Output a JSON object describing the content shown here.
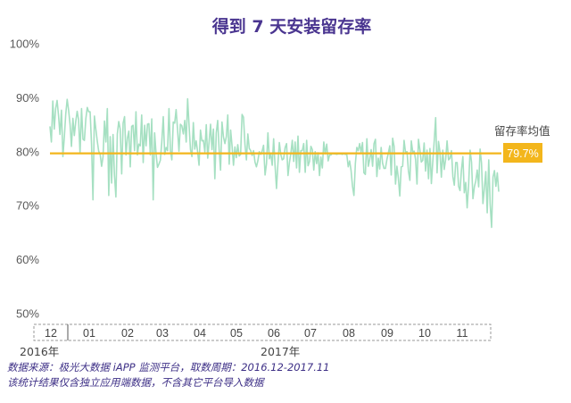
{
  "chart_data": {
    "type": "line",
    "title": "得到 7 天安装留存率",
    "y_unit": "%",
    "ylim": [
      50,
      100
    ],
    "yticks": [
      "100%",
      "90%",
      "80%",
      "70%",
      "60%",
      "50%"
    ],
    "months": [
      "12",
      "01",
      "02",
      "03",
      "04",
      "05",
      "06",
      "07",
      "08",
      "09",
      "10",
      "11"
    ],
    "year_labels": [
      "2016年",
      "2017年"
    ],
    "x_range": [
      "2016-12-01",
      "2017-11-30"
    ],
    "average": {
      "label": "留存率均值",
      "value": 79.7,
      "value_label": "79.7%"
    },
    "colors": {
      "series": "#a6e0c2",
      "average": "#f3b61c",
      "title": "#4a3590",
      "badge": "#f3b61c"
    },
    "grid": false,
    "series": [
      {
        "values": [
          84.7,
          81.8,
          89.4,
          84.2,
          88.0,
          89.5,
          86.7,
          83.2,
          87.7,
          79.1,
          82.7,
          87.0,
          89.7,
          87.7,
          85.1,
          81.0,
          86.2,
          83.0,
          85.6,
          87.5,
          85.9,
          79.7,
          88.0,
          82.3,
          82.1,
          86.1,
          88.2,
          87.4,
          87.4,
          81.4,
          71.1,
          86.6,
          84.2,
          82.0,
          80.1,
          79.6,
          77.3,
          79.1,
          85.7,
          81.8,
          88.0,
          71.9,
          82.8,
          74.2,
          83.2,
          75.6,
          71.6,
          83.3,
          85.6,
          84.2,
          75.9,
          85.3,
          86.5,
          79.4,
          82.5,
          83.8,
          77.2,
          84.7,
          84.9,
          80.2,
          87.4,
          79.4,
          81.4,
          81.1,
          86.8,
          78.0,
          84.9,
          81.1,
          85.1,
          85.2,
          79.4,
          86.1,
          71.1,
          83.5,
          79.7,
          77.1,
          77.7,
          78.4,
          81.7,
          86.5,
          79.5,
          80.8,
          80.2,
          88.0,
          80.3,
          78.5,
          85.5,
          85.3,
          87.8,
          84.1,
          80.1,
          85.1,
          84.8,
          83.3,
          85.8,
          81.8,
          89.8,
          84.9,
          80.4,
          79.1,
          85.4,
          80.5,
          82.0,
          80.0,
          77.5,
          84.0,
          82.0,
          82.1,
          80.0,
          85.0,
          78.8,
          81.9,
          85.1,
          80.4,
          84.2,
          75.0,
          83.5,
          85.8,
          80.5,
          76.6,
          85.5,
          82.7,
          81.5,
          82.8,
          86.8,
          77.7,
          84.0,
          81.1,
          77.5,
          80.9,
          78.9,
          81.3,
          79.2,
          79.5,
          86.9,
          86.4,
          81.3,
          78.5,
          83.3,
          80.6,
          80.2,
          79.3,
          80.2,
          78.1,
          77.2,
          78.3,
          80.0,
          79.5,
          80.1,
          81.2,
          75.7,
          77.8,
          83.5,
          78.7,
          79.6,
          77.5,
          82.4,
          77.4,
          73.2,
          77.8,
          81.7,
          79.5,
          78.5,
          78.7,
          80.8,
          81.5,
          75.6,
          78.0,
          79.7,
          82.1,
          78.2,
          81.8,
          77.0,
          82.9,
          76.2,
          80.2,
          80.2,
          81.5,
          76.2,
          82.1,
          77.4,
          78.2,
          81.0,
          80.4,
          76.6,
          80.0,
          77.8,
          79.8,
          75.6,
          79.0,
          77.0,
          81.8,
          79.6,
          81.4,
          78.3,
          79.4,
          79.4,
          79.7,
          79.6,
          79.6,
          79.5,
          79.6,
          79.6,
          79.6,
          79.5,
          79.7,
          79.5,
          79.5,
          77.2,
          78.3,
          76.5,
          73.6,
          71.9,
          77.8,
          80.8,
          80.2,
          81.5,
          79.9,
          81.7,
          76.1,
          75.8,
          82.4,
          77.3,
          78.6,
          80.4,
          77.3,
          81.5,
          82.3,
          75.4,
          78.8,
          76.8,
          80.8,
          77.9,
          76.9,
          76.9,
          78.6,
          79.8,
          81.1,
          75.7,
          82.5,
          81.0,
          74.0,
          77.3,
          75.1,
          71.8,
          77.2,
          77.3,
          82.1,
          79.9,
          80.0,
          76.4,
          74.7,
          82.0,
          80.0,
          80.1,
          78.6,
          74.0,
          82.3,
          80.4,
          78.1,
          78.4,
          81.6,
          76.4,
          80.3,
          75.0,
          80.6,
          74.1,
          78.2,
          82.0,
          86.3,
          76.1,
          81.9,
          80.0,
          75.3,
          80.3,
          76.7,
          78.6,
          82.0,
          78.5,
          78.8,
          80.2,
          75.4,
          73.8,
          78.0,
          78.0,
          73.6,
          72.8,
          76.6,
          79.1,
          72.4,
          74.3,
          69.6,
          74.1,
          80.3,
          78.1,
          71.3,
          73.5,
          74.6,
          76.6,
          73.5,
          80.5,
          77.9,
          70.4,
          73.2,
          76.3,
          68.7,
          78.5,
          70.3,
          66.0,
          75.3,
          76.5,
          73.6,
          76.1,
          72.6
        ]
      }
    ]
  },
  "footer": {
    "source_line": "数据来源：极光大数据 iAPP 监测平台，取数周期：2016.12-2017.11",
    "note_line": "该统计结果仅含独立应用端数据，不含其它平台导入数据"
  }
}
